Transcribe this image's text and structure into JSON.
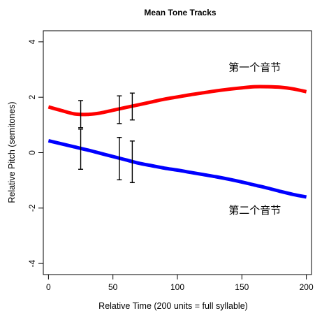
{
  "chart_data": {
    "type": "line",
    "title": "Mean Tone Tracks",
    "xlabel": "Relative Time (200 units = full syllable)",
    "ylabel": "Relative Pitch (semitones)",
    "xlim": [
      -4,
      204
    ],
    "ylim": [
      -4.4,
      4.4
    ],
    "x_ticks": [
      0,
      50,
      100,
      150,
      200
    ],
    "y_ticks": [
      -4,
      -2,
      0,
      2,
      4
    ],
    "grid": false,
    "legend": "none",
    "series": [
      {
        "name": "第一个音节",
        "color": "#ff0000",
        "x": [
          0,
          10,
          20,
          30,
          40,
          50,
          60,
          70,
          80,
          90,
          100,
          110,
          120,
          130,
          140,
          150,
          160,
          170,
          180,
          190,
          200
        ],
        "y": [
          1.65,
          1.52,
          1.4,
          1.38,
          1.43,
          1.53,
          1.63,
          1.73,
          1.83,
          1.93,
          2.01,
          2.09,
          2.16,
          2.23,
          2.29,
          2.34,
          2.38,
          2.38,
          2.36,
          2.3,
          2.2
        ],
        "label_at": [
          160,
          2.95
        ]
      },
      {
        "name": "第二个音节",
        "color": "#0000ff",
        "x": [
          0,
          10,
          20,
          30,
          40,
          50,
          60,
          70,
          80,
          90,
          100,
          110,
          120,
          130,
          140,
          150,
          160,
          170,
          180,
          190,
          200
        ],
        "y": [
          0.43,
          0.32,
          0.21,
          0.1,
          -0.02,
          -0.14,
          -0.26,
          -0.38,
          -0.47,
          -0.56,
          -0.63,
          -0.71,
          -0.79,
          -0.87,
          -0.96,
          -1.06,
          -1.17,
          -1.28,
          -1.4,
          -1.51,
          -1.6
        ],
        "label_at": [
          160,
          -2.2
        ]
      }
    ],
    "error_bars": [
      {
        "x": 25,
        "low": 0.9,
        "high": 1.88
      },
      {
        "x": 25,
        "low": -0.6,
        "high": 0.85
      },
      {
        "x": 55,
        "low": 1.05,
        "high": 2.05
      },
      {
        "x": 55,
        "low": -0.98,
        "high": 0.55
      },
      {
        "x": 65,
        "low": 1.18,
        "high": 2.15
      },
      {
        "x": 65,
        "low": -1.08,
        "high": 0.42
      }
    ]
  }
}
